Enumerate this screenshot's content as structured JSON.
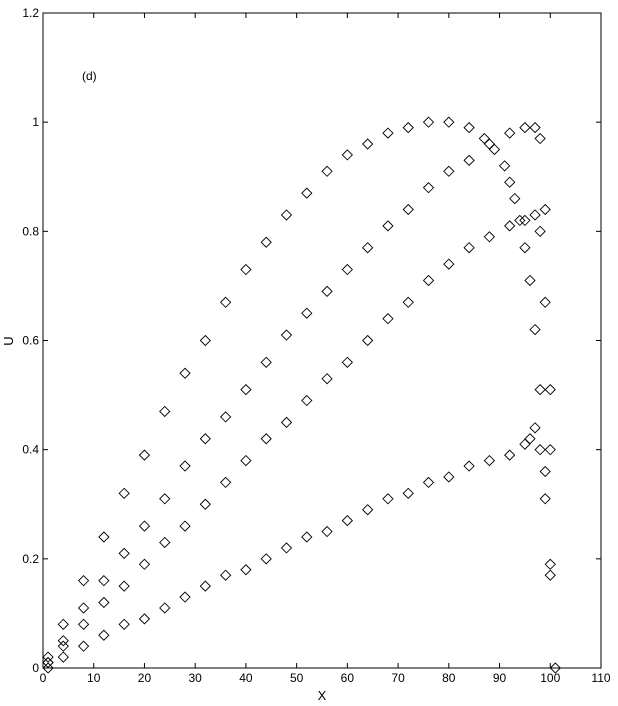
{
  "chart_data": {
    "type": "scatter",
    "title": "",
    "panel_label": "(d)",
    "xlabel": "X",
    "ylabel": "U",
    "xlim": [
      0,
      110
    ],
    "ylim": [
      0,
      1.2
    ],
    "xticks": [
      0,
      10,
      20,
      30,
      40,
      50,
      60,
      70,
      80,
      90,
      100,
      110
    ],
    "yticks": [
      0,
      0.2,
      0.4,
      0.6,
      0.8,
      1,
      1.2
    ],
    "xtick_labels": [
      "0",
      "10",
      "20",
      "30",
      "40",
      "50",
      "60",
      "70",
      "80",
      "90",
      "100",
      "110"
    ],
    "ytick_labels": [
      "0",
      "0.2",
      "0.4",
      "0.6",
      "0.8",
      "1",
      "1.2"
    ],
    "grid": false,
    "marker": "diamond",
    "marker_color": "#000000",
    "series": [
      {
        "points": [
          [
            1,
            0.02
          ],
          [
            4,
            0.08
          ],
          [
            8,
            0.16
          ],
          [
            12,
            0.24
          ],
          [
            16,
            0.32
          ],
          [
            20,
            0.39
          ],
          [
            24,
            0.47
          ],
          [
            28,
            0.54
          ],
          [
            32,
            0.6
          ],
          [
            36,
            0.67
          ],
          [
            40,
            0.73
          ],
          [
            44,
            0.78
          ],
          [
            48,
            0.83
          ],
          [
            52,
            0.87
          ],
          [
            56,
            0.91
          ],
          [
            60,
            0.94
          ],
          [
            64,
            0.96
          ],
          [
            68,
            0.98
          ],
          [
            72,
            0.99
          ],
          [
            76,
            1.0
          ],
          [
            80,
            1.0
          ],
          [
            84,
            0.99
          ],
          [
            87,
            0.97
          ],
          [
            89,
            0.95
          ],
          [
            91,
            0.92
          ],
          [
            92,
            0.89
          ],
          [
            93,
            0.86
          ],
          [
            94,
            0.82
          ],
          [
            95,
            0.77
          ],
          [
            96,
            0.71
          ],
          [
            97,
            0.62
          ],
          [
            98,
            0.51
          ],
          [
            99,
            0.36
          ],
          [
            99,
            0.31
          ],
          [
            100,
            0.19
          ],
          [
            100,
            0.17
          ],
          [
            101,
            0.0
          ]
        ]
      },
      {
        "points": [
          [
            1,
            0.01
          ],
          [
            4,
            0.05
          ],
          [
            8,
            0.11
          ],
          [
            12,
            0.16
          ],
          [
            16,
            0.21
          ],
          [
            20,
            0.26
          ],
          [
            24,
            0.31
          ],
          [
            28,
            0.37
          ],
          [
            32,
            0.42
          ],
          [
            36,
            0.46
          ],
          [
            40,
            0.51
          ],
          [
            44,
            0.56
          ],
          [
            48,
            0.61
          ],
          [
            52,
            0.65
          ],
          [
            56,
            0.69
          ],
          [
            60,
            0.73
          ],
          [
            64,
            0.77
          ],
          [
            68,
            0.81
          ],
          [
            72,
            0.84
          ],
          [
            76,
            0.88
          ],
          [
            80,
            0.91
          ],
          [
            84,
            0.93
          ],
          [
            88,
            0.96
          ],
          [
            92,
            0.98
          ],
          [
            95,
            0.99
          ],
          [
            97,
            0.99
          ],
          [
            98,
            0.97
          ],
          [
            100,
            0.51
          ],
          [
            100,
            0.4
          ]
        ]
      },
      {
        "points": [
          [
            1,
            0.01
          ],
          [
            4,
            0.04
          ],
          [
            8,
            0.08
          ],
          [
            12,
            0.12
          ],
          [
            16,
            0.15
          ],
          [
            20,
            0.19
          ],
          [
            24,
            0.23
          ],
          [
            28,
            0.26
          ],
          [
            32,
            0.3
          ],
          [
            36,
            0.34
          ],
          [
            40,
            0.38
          ],
          [
            44,
            0.42
          ],
          [
            48,
            0.45
          ],
          [
            52,
            0.49
          ],
          [
            56,
            0.53
          ],
          [
            60,
            0.56
          ],
          [
            64,
            0.6
          ],
          [
            68,
            0.64
          ],
          [
            72,
            0.67
          ],
          [
            76,
            0.71
          ],
          [
            80,
            0.74
          ],
          [
            84,
            0.77
          ],
          [
            88,
            0.79
          ],
          [
            92,
            0.81
          ],
          [
            95,
            0.82
          ],
          [
            97,
            0.83
          ],
          [
            98,
            0.8
          ],
          [
            99,
            0.84
          ],
          [
            99,
            0.67
          ],
          [
            98,
            0.4
          ]
        ]
      },
      {
        "points": [
          [
            1,
            0.0
          ],
          [
            4,
            0.02
          ],
          [
            8,
            0.04
          ],
          [
            12,
            0.06
          ],
          [
            16,
            0.08
          ],
          [
            20,
            0.09
          ],
          [
            24,
            0.11
          ],
          [
            28,
            0.13
          ],
          [
            32,
            0.15
          ],
          [
            36,
            0.17
          ],
          [
            40,
            0.18
          ],
          [
            44,
            0.2
          ],
          [
            48,
            0.22
          ],
          [
            52,
            0.24
          ],
          [
            56,
            0.25
          ],
          [
            60,
            0.27
          ],
          [
            64,
            0.29
          ],
          [
            68,
            0.31
          ],
          [
            72,
            0.32
          ],
          [
            76,
            0.34
          ],
          [
            80,
            0.35
          ],
          [
            84,
            0.37
          ],
          [
            88,
            0.38
          ],
          [
            92,
            0.39
          ],
          [
            95,
            0.41
          ],
          [
            96,
            0.42
          ],
          [
            97,
            0.44
          ]
        ]
      }
    ]
  }
}
